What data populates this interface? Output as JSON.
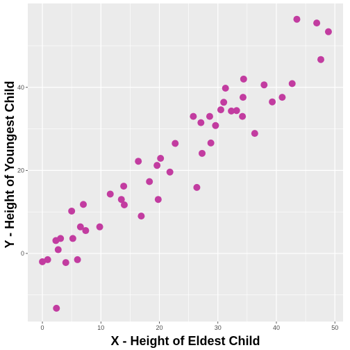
{
  "chart_data": {
    "type": "scatter",
    "title": "",
    "xlabel": "X - Height of Eldest Child",
    "ylabel": "Y - Height of Youngest Child",
    "xlim": [
      -2.5,
      51.4
    ],
    "ylim": [
      -16.4,
      60.2
    ],
    "x_ticks": [
      0,
      10,
      20,
      30,
      40,
      50
    ],
    "y_ticks": [
      0,
      20,
      40
    ],
    "grid": true,
    "legend": "none",
    "colors": {
      "panel_background": "#EBEBEB",
      "grid_major": "#FFFFFF",
      "point": "#C23CA0"
    },
    "points": [
      {
        "x": 0.0,
        "y": -2.0
      },
      {
        "x": 0.9,
        "y": -1.5
      },
      {
        "x": 2.3,
        "y": 3.1
      },
      {
        "x": 2.7,
        "y": 0.9
      },
      {
        "x": 3.1,
        "y": 3.6
      },
      {
        "x": 2.4,
        "y": -13.2
      },
      {
        "x": 4.0,
        "y": -2.2
      },
      {
        "x": 5.0,
        "y": 10.2
      },
      {
        "x": 5.2,
        "y": 3.6
      },
      {
        "x": 6.0,
        "y": -1.5
      },
      {
        "x": 6.5,
        "y": 6.4
      },
      {
        "x": 7.0,
        "y": 11.8
      },
      {
        "x": 7.4,
        "y": 5.5
      },
      {
        "x": 9.8,
        "y": 6.4
      },
      {
        "x": 11.6,
        "y": 14.3
      },
      {
        "x": 13.5,
        "y": 13.0
      },
      {
        "x": 13.9,
        "y": 16.2
      },
      {
        "x": 14.0,
        "y": 11.7
      },
      {
        "x": 16.4,
        "y": 22.2
      },
      {
        "x": 16.9,
        "y": 9.0
      },
      {
        "x": 18.3,
        "y": 17.3
      },
      {
        "x": 19.6,
        "y": 21.2
      },
      {
        "x": 19.8,
        "y": 13.0
      },
      {
        "x": 20.2,
        "y": 22.9
      },
      {
        "x": 21.8,
        "y": 19.6
      },
      {
        "x": 22.7,
        "y": 26.5
      },
      {
        "x": 25.8,
        "y": 33.0
      },
      {
        "x": 26.4,
        "y": 15.9
      },
      {
        "x": 27.1,
        "y": 31.5
      },
      {
        "x": 27.3,
        "y": 24.1
      },
      {
        "x": 28.6,
        "y": 33.0
      },
      {
        "x": 28.8,
        "y": 26.6
      },
      {
        "x": 29.6,
        "y": 30.8
      },
      {
        "x": 30.5,
        "y": 34.6
      },
      {
        "x": 31.0,
        "y": 36.4
      },
      {
        "x": 31.3,
        "y": 39.8
      },
      {
        "x": 32.3,
        "y": 34.3
      },
      {
        "x": 33.2,
        "y": 34.4
      },
      {
        "x": 34.2,
        "y": 33.0
      },
      {
        "x": 34.3,
        "y": 37.6
      },
      {
        "x": 34.4,
        "y": 42.0
      },
      {
        "x": 36.3,
        "y": 28.9
      },
      {
        "x": 37.9,
        "y": 40.6
      },
      {
        "x": 39.3,
        "y": 36.5
      },
      {
        "x": 41.0,
        "y": 37.6
      },
      {
        "x": 42.7,
        "y": 40.9
      },
      {
        "x": 43.5,
        "y": 56.4
      },
      {
        "x": 46.9,
        "y": 55.5
      },
      {
        "x": 47.6,
        "y": 46.7
      },
      {
        "x": 48.9,
        "y": 53.4
      }
    ]
  }
}
